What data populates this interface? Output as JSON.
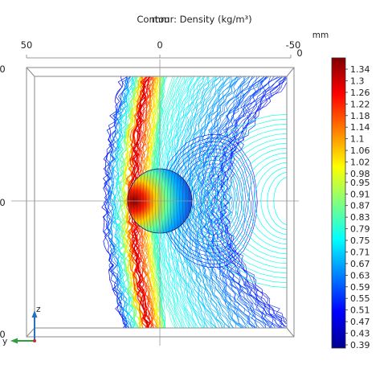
{
  "chart_data": {
    "type": "contour",
    "title": "Contour: Density (kg/m³)",
    "title_overlap": "mm",
    "unit_label": "mm",
    "x_ticks": [
      "50",
      "0",
      "-50"
    ],
    "y_ticks": [
      "0",
      "0",
      "0"
    ],
    "side_tick": "0",
    "axis_triad": {
      "z": "z",
      "y": "y"
    },
    "colorbar": {
      "min": 0.39,
      "max": 1.34,
      "labels": [
        "1.34",
        "1.3",
        "1.26",
        "1.22",
        "1.18",
        "1.14",
        "1.1",
        "1.06",
        "1.02",
        "0.98",
        "0.95",
        "0.91",
        "0.87",
        "0.83",
        "0.79",
        "0.75",
        "0.71",
        "0.67",
        "0.63",
        "0.59",
        "0.55",
        "0.51",
        "0.47",
        "0.43",
        "0.39"
      ]
    },
    "colors": {
      "low": "#00008f",
      "mid": "#00ffff",
      "high": "#800000"
    },
    "grid": true
  }
}
